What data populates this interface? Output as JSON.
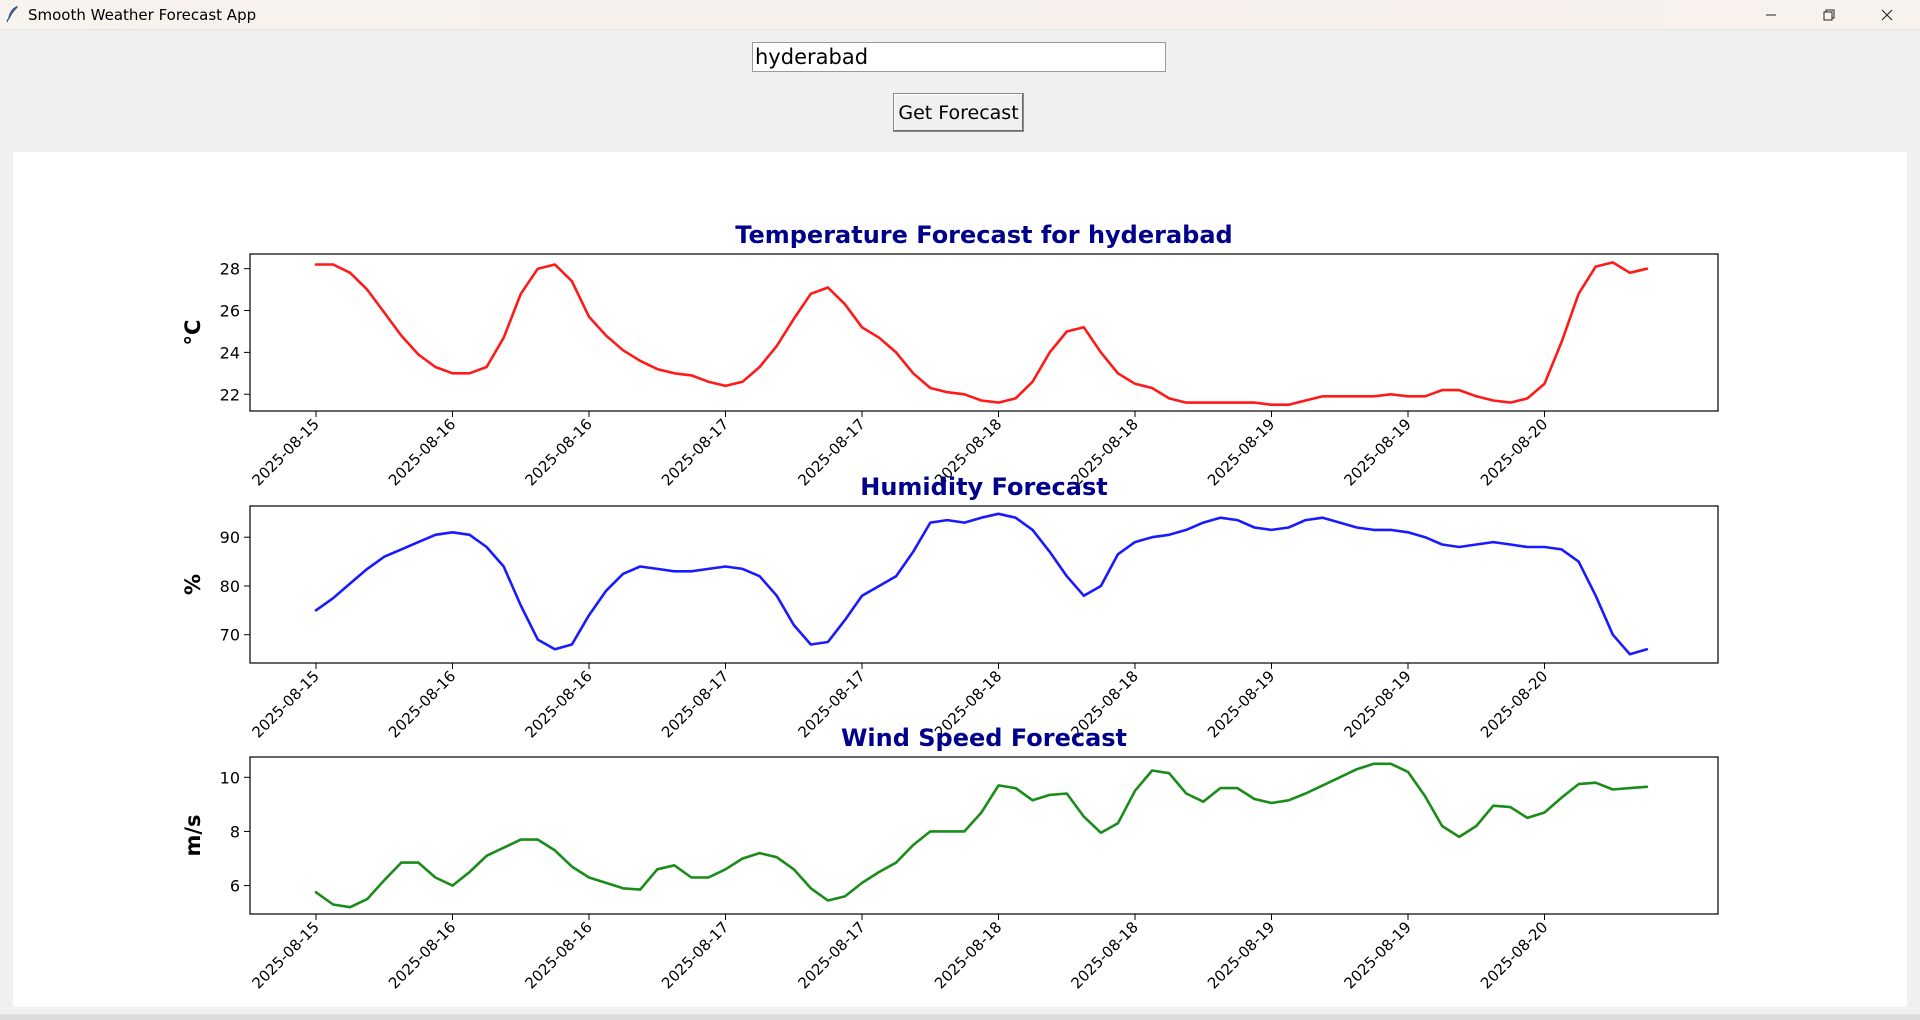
{
  "window": {
    "title": "Smooth Weather Forecast App",
    "controls": [
      "minimize-icon",
      "restore-icon",
      "close-icon"
    ]
  },
  "form": {
    "city_value": "hyderabad",
    "button_label": "Get Forecast"
  },
  "colors": {
    "title": "#00008b",
    "temperature": "#ff1a1a",
    "humidity": "#1a1aff",
    "wind": "#1a8c1a"
  },
  "chart_data": [
    {
      "type": "line",
      "title": "Temperature Forecast for hyderabad",
      "ylabel": "°C",
      "xlabel": "",
      "tick_labels": [
        "2025-08-15",
        "2025-08-16",
        "2025-08-16",
        "2025-08-17",
        "2025-08-17",
        "2025-08-18",
        "2025-08-18",
        "2025-08-19",
        "2025-08-19",
        "2025-08-20"
      ],
      "yticks": [
        22,
        24,
        26,
        28
      ],
      "ylim": [
        21.2,
        28.7
      ],
      "x": [
        0,
        0.5,
        1,
        1.5,
        2,
        2.5,
        3,
        3.5,
        4,
        4.5,
        5,
        5.5,
        6,
        6.5,
        7,
        7.5,
        8,
        8.5,
        9,
        9.5,
        10,
        10.5,
        11,
        11.5,
        12,
        12.5,
        13,
        13.5,
        14,
        14.5,
        15,
        15.5,
        16,
        16.5,
        17,
        17.5,
        18,
        18.5,
        19,
        19.5,
        20,
        20.5,
        21,
        21.5,
        22,
        22.5,
        23,
        23.5,
        24,
        24.5,
        25,
        25.5,
        26,
        26.5,
        27,
        27.5,
        28,
        28.5,
        29,
        29.5,
        30,
        30.5,
        31,
        31.5,
        32,
        32.5,
        33,
        33.5,
        34,
        34.5,
        35,
        35.5,
        36,
        36.5,
        37,
        37.5,
        38,
        38.5,
        39
      ],
      "series": [
        {
          "color": "#ff1a1a",
          "values": [
            28.2,
            28.2,
            27.8,
            27.0,
            25.9,
            24.8,
            23.9,
            23.3,
            23.0,
            23.0,
            23.3,
            24.7,
            26.8,
            28.0,
            28.2,
            27.4,
            25.7,
            24.8,
            24.1,
            23.6,
            23.2,
            23.0,
            22.9,
            22.6,
            22.4,
            22.6,
            23.3,
            24.3,
            25.6,
            26.8,
            27.1,
            26.3,
            25.2,
            24.7,
            24.0,
            23.0,
            22.3,
            22.1,
            22.0,
            21.7,
            21.6,
            21.8,
            22.6,
            24.0,
            25.0,
            25.2,
            24.0,
            23.0,
            22.5,
            22.3,
            21.8,
            21.6,
            21.6,
            21.6,
            21.6,
            21.6,
            21.5,
            21.5,
            21.7,
            21.9,
            21.9,
            21.9,
            21.9,
            22.0,
            21.9,
            21.9,
            22.2,
            22.2,
            21.9,
            21.7,
            21.6,
            21.8,
            22.5,
            24.5,
            26.8,
            28.1,
            28.3,
            27.8,
            28.0
          ]
        }
      ]
    },
    {
      "type": "line",
      "title": "Humidity Forecast",
      "ylabel": "%",
      "xlabel": "",
      "tick_labels": [
        "2025-08-15",
        "2025-08-16",
        "2025-08-16",
        "2025-08-17",
        "2025-08-17",
        "2025-08-18",
        "2025-08-18",
        "2025-08-19",
        "2025-08-19",
        "2025-08-20"
      ],
      "yticks": [
        70,
        80,
        90
      ],
      "ylim": [
        64.2,
        96.4
      ],
      "x": [
        0,
        0.5,
        1,
        1.5,
        2,
        2.5,
        3,
        3.5,
        4,
        4.5,
        5,
        5.5,
        6,
        6.5,
        7,
        7.5,
        8,
        8.5,
        9,
        9.5,
        10,
        10.5,
        11,
        11.5,
        12,
        12.5,
        13,
        13.5,
        14,
        14.5,
        15,
        15.5,
        16,
        16.5,
        17,
        17.5,
        18,
        18.5,
        19,
        19.5,
        20,
        20.5,
        21,
        21.5,
        22,
        22.5,
        23,
        23.5,
        24,
        24.5,
        25,
        25.5,
        26,
        26.5,
        27,
        27.5,
        28,
        28.5,
        29,
        29.5,
        30,
        30.5,
        31,
        31.5,
        32,
        32.5,
        33,
        33.5,
        34,
        34.5,
        35,
        35.5,
        36,
        36.5,
        37,
        37.5,
        38,
        38.5,
        39
      ],
      "series": [
        {
          "color": "#1a1aff",
          "values": [
            75,
            77.5,
            80.5,
            83.5,
            86,
            87.5,
            89,
            90.5,
            91,
            90.5,
            88,
            84,
            76,
            69,
            67,
            68,
            74,
            79,
            82.5,
            84,
            83.5,
            83,
            83,
            83.5,
            84,
            83.5,
            82,
            78,
            72,
            68,
            68.5,
            73,
            78,
            80,
            82,
            87,
            93,
            93.5,
            93,
            94,
            94.8,
            94,
            91.5,
            87,
            82,
            78,
            80,
            86.5,
            89,
            90,
            90.5,
            91.5,
            93,
            94,
            93.5,
            92,
            91.5,
            92,
            93.5,
            94,
            93,
            92,
            91.5,
            91.5,
            91,
            90,
            88.5,
            88,
            88.5,
            89,
            88.5,
            88,
            88,
            87.5,
            85,
            78,
            70,
            66,
            67
          ]
        }
      ]
    },
    {
      "type": "line",
      "title": "Wind Speed Forecast",
      "ylabel": "m/s",
      "xlabel": "",
      "tick_labels": [
        "2025-08-15",
        "2025-08-16",
        "2025-08-16",
        "2025-08-17",
        "2025-08-17",
        "2025-08-18",
        "2025-08-18",
        "2025-08-19",
        "2025-08-19",
        "2025-08-20"
      ],
      "yticks": [
        6,
        8,
        10
      ],
      "ylim": [
        4.95,
        10.75
      ],
      "x": [
        0,
        0.5,
        1,
        1.5,
        2,
        2.5,
        3,
        3.5,
        4,
        4.5,
        5,
        5.5,
        6,
        6.5,
        7,
        7.5,
        8,
        8.5,
        9,
        9.5,
        10,
        10.5,
        11,
        11.5,
        12,
        12.5,
        13,
        13.5,
        14,
        14.5,
        15,
        15.5,
        16,
        16.5,
        17,
        17.5,
        18,
        18.5,
        19,
        19.5,
        20,
        20.5,
        21,
        21.5,
        22,
        22.5,
        23,
        23.5,
        24,
        24.5,
        25,
        25.5,
        26,
        26.5,
        27,
        27.5,
        28,
        28.5,
        29,
        29.5,
        30,
        30.5,
        31,
        31.5,
        32,
        32.5,
        33,
        33.5,
        34,
        34.5,
        35,
        35.5,
        36,
        36.5,
        37,
        37.5,
        38,
        38.5,
        39
      ],
      "series": [
        {
          "color": "#1a8c1a",
          "values": [
            5.75,
            5.3,
            5.2,
            5.5,
            6.2,
            6.85,
            6.85,
            6.3,
            6.0,
            6.5,
            7.1,
            7.4,
            7.7,
            7.7,
            7.3,
            6.7,
            6.3,
            6.1,
            5.9,
            5.85,
            6.6,
            6.75,
            6.3,
            6.3,
            6.6,
            7.0,
            7.2,
            7.05,
            6.6,
            5.9,
            5.45,
            5.6,
            6.1,
            6.5,
            6.85,
            7.5,
            8.0,
            8.0,
            8.0,
            8.7,
            9.7,
            9.6,
            9.15,
            9.35,
            9.4,
            8.55,
            7.95,
            8.3,
            9.5,
            10.25,
            10.15,
            9.4,
            9.1,
            9.6,
            9.6,
            9.2,
            9.05,
            9.15,
            9.4,
            9.7,
            10.0,
            10.3,
            10.5,
            10.5,
            10.2,
            9.3,
            8.2,
            7.8,
            8.2,
            8.95,
            8.9,
            8.5,
            8.7,
            9.25,
            9.75,
            9.8,
            9.55,
            9.6,
            9.65
          ]
        }
      ]
    }
  ]
}
